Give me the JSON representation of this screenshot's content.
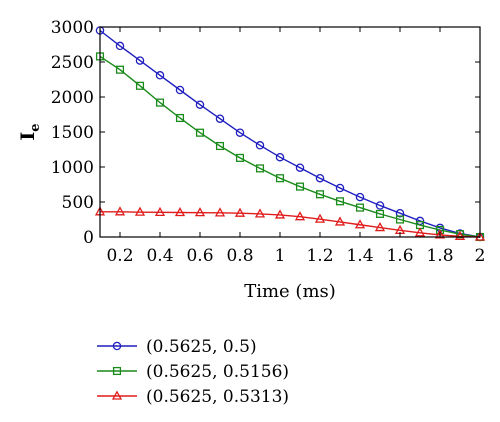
{
  "chart_data": {
    "type": "line",
    "xlabel": "Time (ms)",
    "ylabel": "I",
    "ylabel_subscript": "e",
    "xlim": [
      0.1,
      2.0
    ],
    "ylim": [
      0,
      3000
    ],
    "x_ticks": [
      0.2,
      0.4,
      0.6,
      0.8,
      1,
      1.2,
      1.4,
      1.6,
      1.8,
      2
    ],
    "x_tick_labels": [
      "0.2",
      "0.4",
      "0.6",
      "0.8",
      "1",
      "1.2",
      "1.4",
      "1.6",
      "1.8",
      "2"
    ],
    "y_ticks": [
      0,
      500,
      1000,
      1500,
      2000,
      2500,
      3000
    ],
    "y_tick_labels": [
      "0",
      "500",
      "1000",
      "1500",
      "2000",
      "2500",
      "3000"
    ],
    "grid": false,
    "legend_position": "below",
    "x": [
      0.1,
      0.2,
      0.3,
      0.4,
      0.5,
      0.6,
      0.7,
      0.8,
      0.9,
      1.0,
      1.1,
      1.2,
      1.3,
      1.4,
      1.5,
      1.6,
      1.7,
      1.8,
      1.9,
      2.0
    ],
    "series": [
      {
        "name": "(0.5625, 0.5)",
        "color": "#1f1fbf",
        "marker": "circle",
        "values": [
          2950,
          2730,
          2520,
          2310,
          2100,
          1890,
          1690,
          1490,
          1310,
          1140,
          990,
          840,
          700,
          570,
          450,
          340,
          230,
          130,
          50,
          0
        ]
      },
      {
        "name": "(0.5625, 0.5156)",
        "color": "#1a8a1a",
        "marker": "square",
        "values": [
          2580,
          2390,
          2160,
          1920,
          1700,
          1490,
          1300,
          1130,
          980,
          840,
          720,
          610,
          510,
          420,
          330,
          250,
          170,
          100,
          40,
          0
        ]
      },
      {
        "name": "(0.5625, 0.5313)",
        "color": "#e01c1c",
        "marker": "triangle",
        "values": [
          360,
          360,
          355,
          352,
          350,
          348,
          345,
          340,
          330,
          315,
          290,
          255,
          215,
          175,
          135,
          95,
          60,
          30,
          10,
          0
        ]
      }
    ]
  }
}
